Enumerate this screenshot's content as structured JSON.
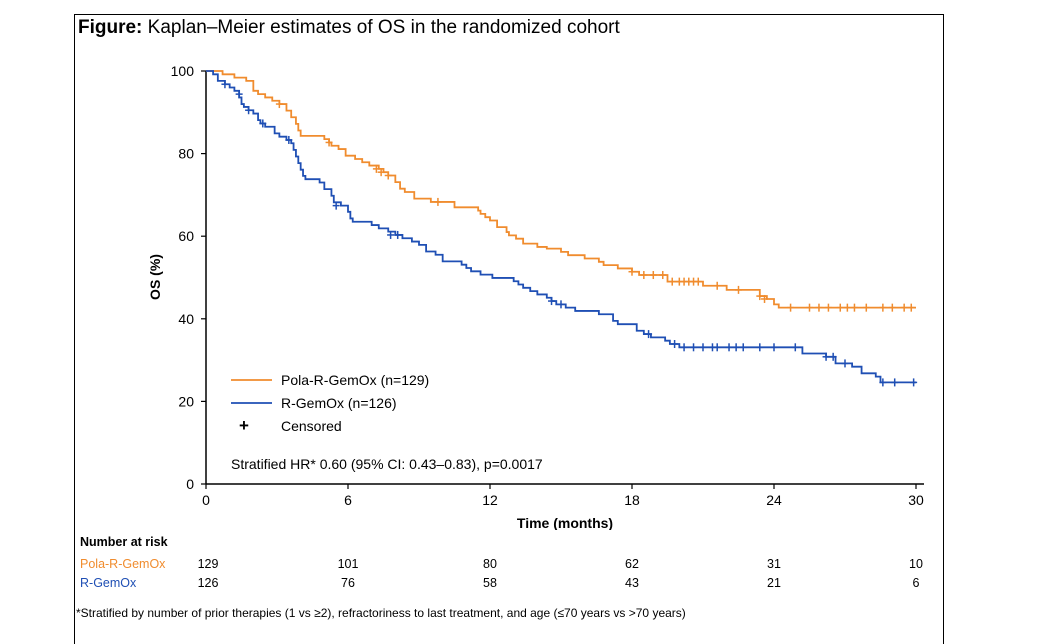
{
  "figure": {
    "title_prefix": "Figure:",
    "title_text": " Kaplan–Meier estimates of OS in the randomized cohort"
  },
  "colors": {
    "pola": "#f08c2e",
    "rgemox": "#1f4fb4",
    "axis": "#000000"
  },
  "chart_data": {
    "type": "line",
    "step": true,
    "xlabel": "Time (months)",
    "ylabel": "OS (%)",
    "xlim": [
      0,
      30
    ],
    "ylim": [
      0,
      100
    ],
    "xticks": [
      0,
      6,
      12,
      18,
      24,
      30
    ],
    "yticks": [
      0,
      20,
      40,
      60,
      80,
      100
    ],
    "grid": false,
    "legend": {
      "position": "bottom-left",
      "entries": [
        {
          "label": "Pola-R-GemOx (n=129)",
          "series": "pola"
        },
        {
          "label": "R-GemOx (n=126)",
          "series": "rgemox"
        },
        {
          "label": "Censored",
          "symbol": "+"
        }
      ]
    },
    "annotation": "Stratified HR* 0.60 (95% CI: 0.43–0.83), p=0.0017",
    "series": [
      {
        "key": "pola",
        "name": "Pola-R-GemOx",
        "steps": [
          [
            0,
            100
          ],
          [
            0.7,
            99.2
          ],
          [
            1.2,
            98.4
          ],
          [
            1.7,
            97.6
          ],
          [
            2.0,
            95.2
          ],
          [
            2.2,
            94.4
          ],
          [
            2.5,
            93.6
          ],
          [
            2.8,
            92.8
          ],
          [
            3.1,
            92.0
          ],
          [
            3.4,
            90.4
          ],
          [
            3.6,
            88.8
          ],
          [
            3.8,
            87.2
          ],
          [
            3.9,
            85.6
          ],
          [
            4.0,
            84.3
          ],
          [
            4.7,
            84.3
          ],
          [
            5.0,
            83.5
          ],
          [
            5.2,
            82.7
          ],
          [
            5.3,
            81.9
          ],
          [
            5.6,
            81.1
          ],
          [
            5.9,
            79.5
          ],
          [
            6.3,
            78.7
          ],
          [
            6.6,
            77.9
          ],
          [
            6.9,
            77.1
          ],
          [
            7.3,
            76.3
          ],
          [
            7.5,
            75.5
          ],
          [
            7.7,
            74.7
          ],
          [
            8.0,
            73.1
          ],
          [
            8.2,
            71.5
          ],
          [
            8.4,
            70.7
          ],
          [
            8.8,
            69.1
          ],
          [
            9.5,
            68.3
          ],
          [
            10.3,
            68.3
          ],
          [
            10.5,
            67.0
          ],
          [
            11.3,
            67.0
          ],
          [
            11.5,
            66.2
          ],
          [
            11.6,
            65.4
          ],
          [
            11.8,
            64.6
          ],
          [
            12.0,
            63.8
          ],
          [
            12.3,
            62.2
          ],
          [
            12.7,
            61.0
          ],
          [
            12.8,
            60.2
          ],
          [
            13.1,
            59.4
          ],
          [
            13.4,
            58.2
          ],
          [
            14.0,
            57.4
          ],
          [
            14.4,
            57.0
          ],
          [
            15.0,
            56.2
          ],
          [
            15.3,
            55.4
          ],
          [
            16.0,
            54.6
          ],
          [
            16.6,
            53.8
          ],
          [
            16.8,
            53.0
          ],
          [
            17.4,
            52.2
          ],
          [
            18.0,
            51.4
          ],
          [
            18.3,
            50.6
          ],
          [
            19.3,
            50.6
          ],
          [
            19.5,
            49.0
          ],
          [
            20.0,
            49.0
          ],
          [
            21.0,
            48.0
          ],
          [
            21.5,
            48.0
          ],
          [
            22.0,
            47.0
          ],
          [
            23.2,
            47.0
          ],
          [
            23.4,
            45.5
          ],
          [
            23.7,
            44.8
          ],
          [
            24.0,
            43.5
          ],
          [
            24.2,
            42.7
          ],
          [
            30.0,
            42.7
          ]
        ],
        "censored": [
          [
            3.1,
            92.0
          ],
          [
            5.2,
            82.7
          ],
          [
            7.2,
            76.3
          ],
          [
            7.4,
            75.5
          ],
          [
            7.7,
            74.7
          ],
          [
            9.8,
            68.3
          ],
          [
            18.0,
            51.4
          ],
          [
            18.5,
            50.6
          ],
          [
            18.9,
            50.6
          ],
          [
            19.3,
            50.6
          ],
          [
            19.7,
            49.0
          ],
          [
            20.0,
            49.0
          ],
          [
            20.2,
            49.0
          ],
          [
            20.4,
            49.0
          ],
          [
            20.6,
            49.0
          ],
          [
            20.8,
            49.0
          ],
          [
            21.6,
            48.0
          ],
          [
            22.5,
            47.0
          ],
          [
            23.4,
            45.5
          ],
          [
            23.6,
            44.8
          ],
          [
            24.7,
            42.7
          ],
          [
            25.5,
            42.7
          ],
          [
            25.9,
            42.7
          ],
          [
            26.3,
            42.7
          ],
          [
            26.8,
            42.7
          ],
          [
            27.1,
            42.7
          ],
          [
            27.4,
            42.7
          ],
          [
            27.9,
            42.7
          ],
          [
            28.6,
            42.7
          ],
          [
            29.0,
            42.7
          ],
          [
            29.5,
            42.7
          ],
          [
            29.8,
            42.7
          ]
        ]
      },
      {
        "key": "rgemox",
        "name": "R-GemOx",
        "steps": [
          [
            0,
            100
          ],
          [
            0.3,
            99.2
          ],
          [
            0.5,
            97.6
          ],
          [
            0.8,
            96.8
          ],
          [
            1.0,
            96.0
          ],
          [
            1.2,
            95.2
          ],
          [
            1.4,
            93.6
          ],
          [
            1.5,
            92.0
          ],
          [
            1.6,
            91.3
          ],
          [
            1.8,
            90.5
          ],
          [
            2.0,
            89.7
          ],
          [
            2.2,
            88.1
          ],
          [
            2.3,
            87.3
          ],
          [
            2.5,
            86.5
          ],
          [
            2.9,
            84.9
          ],
          [
            3.1,
            84.1
          ],
          [
            3.4,
            83.3
          ],
          [
            3.6,
            82.5
          ],
          [
            3.7,
            80.9
          ],
          [
            3.8,
            79.3
          ],
          [
            3.9,
            77.7
          ],
          [
            4.0,
            76.1
          ],
          [
            4.1,
            74.6
          ],
          [
            4.2,
            73.8
          ],
          [
            4.8,
            73.0
          ],
          [
            5.0,
            71.4
          ],
          [
            5.3,
            69.8
          ],
          [
            5.4,
            68.2
          ],
          [
            5.7,
            67.4
          ],
          [
            6.0,
            65.9
          ],
          [
            6.1,
            64.3
          ],
          [
            6.2,
            63.5
          ],
          [
            7.0,
            62.7
          ],
          [
            7.3,
            61.9
          ],
          [
            7.7,
            61.1
          ],
          [
            8.0,
            60.3
          ],
          [
            8.3,
            59.5
          ],
          [
            8.7,
            58.7
          ],
          [
            9.0,
            57.9
          ],
          [
            9.3,
            56.3
          ],
          [
            9.7,
            55.5
          ],
          [
            10.0,
            53.9
          ],
          [
            10.8,
            53.1
          ],
          [
            11.0,
            52.3
          ],
          [
            11.2,
            51.5
          ],
          [
            11.6,
            50.7
          ],
          [
            12.1,
            49.9
          ],
          [
            13.0,
            49.1
          ],
          [
            13.2,
            48.3
          ],
          [
            13.4,
            47.5
          ],
          [
            13.7,
            46.7
          ],
          [
            14.0,
            45.9
          ],
          [
            14.4,
            45.1
          ],
          [
            14.6,
            44.3
          ],
          [
            14.8,
            43.5
          ],
          [
            15.2,
            42.7
          ],
          [
            15.6,
            41.9
          ],
          [
            16.6,
            41.1
          ],
          [
            17.2,
            39.5
          ],
          [
            17.4,
            38.7
          ],
          [
            18.0,
            38.7
          ],
          [
            18.2,
            37.1
          ],
          [
            18.5,
            36.3
          ],
          [
            18.8,
            35.5
          ],
          [
            19.4,
            34.7
          ],
          [
            19.6,
            33.9
          ],
          [
            20.0,
            33.1
          ],
          [
            25.1,
            33.1
          ],
          [
            25.2,
            31.6
          ],
          [
            25.8,
            31.6
          ],
          [
            26.2,
            30.8
          ],
          [
            26.6,
            29.2
          ],
          [
            27.2,
            29.2
          ],
          [
            27.3,
            28.4
          ],
          [
            27.7,
            26.8
          ],
          [
            28.3,
            26.0
          ],
          [
            28.5,
            24.6
          ],
          [
            30.0,
            24.6
          ]
        ],
        "censored": [
          [
            0.8,
            96.8
          ],
          [
            1.4,
            94.4
          ],
          [
            1.8,
            90.5
          ],
          [
            2.4,
            87.3
          ],
          [
            3.5,
            83.3
          ],
          [
            5.5,
            67.4
          ],
          [
            7.8,
            60.3
          ],
          [
            8.1,
            60.3
          ],
          [
            14.6,
            44.3
          ],
          [
            15.0,
            43.5
          ],
          [
            18.7,
            36.3
          ],
          [
            19.8,
            33.9
          ],
          [
            20.2,
            33.1
          ],
          [
            20.6,
            33.1
          ],
          [
            21.0,
            33.1
          ],
          [
            21.4,
            33.1
          ],
          [
            21.6,
            33.1
          ],
          [
            22.1,
            33.1
          ],
          [
            22.4,
            33.1
          ],
          [
            22.7,
            33.1
          ],
          [
            23.4,
            33.1
          ],
          [
            24.0,
            33.1
          ],
          [
            24.9,
            33.1
          ],
          [
            26.2,
            30.8
          ],
          [
            26.5,
            30.8
          ],
          [
            27.0,
            29.2
          ],
          [
            28.6,
            24.6
          ],
          [
            29.1,
            24.6
          ],
          [
            29.9,
            24.6
          ]
        ]
      }
    ]
  },
  "risk_table": {
    "header": "Number at risk",
    "rows": [
      {
        "label": "Pola-R-GemOx",
        "values": [
          "129",
          "101",
          "80",
          "62",
          "31",
          "10"
        ]
      },
      {
        "label": "R-GemOx",
        "values": [
          "126",
          "76",
          "58",
          "43",
          "21",
          "6"
        ]
      }
    ]
  },
  "footnote": "*Stratified by number of prior therapies (1 vs ≥2), refractoriness to last treatment, and age (≤70 years vs >70 years)"
}
